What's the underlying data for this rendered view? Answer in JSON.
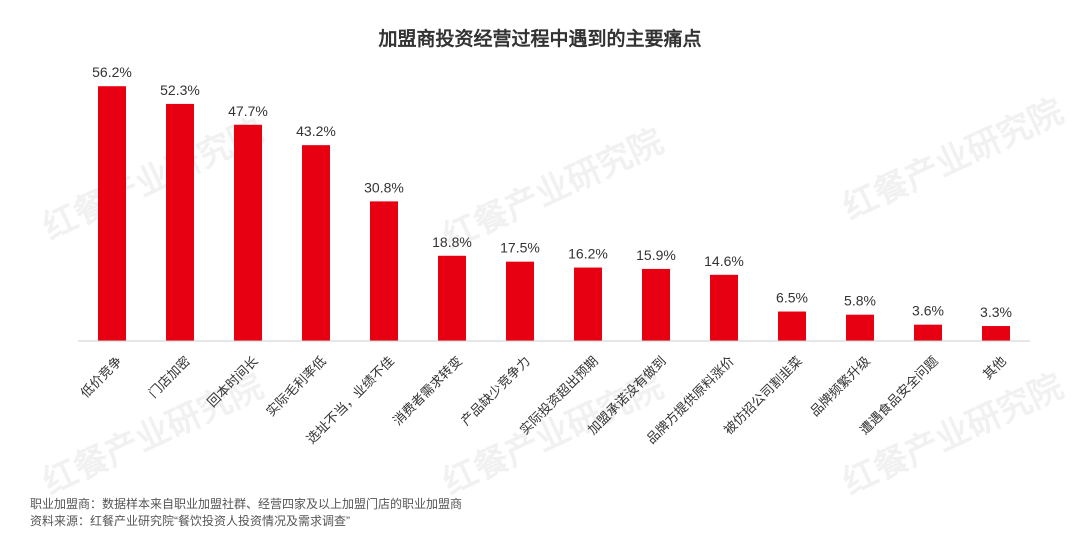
{
  "chart_data": {
    "type": "bar",
    "title": "加盟商投资经营过程中遇到的主要痛点",
    "categories": [
      "低价竞争",
      "门店加密",
      "回本时间长",
      "实际毛利率低",
      "选址不当，业绩不佳",
      "消费者需求转变",
      "产品缺少竞争力",
      "实际投资超出预期",
      "加盟承诺没有做到",
      "品牌方提供原料涨价",
      "被仿招公司割韭菜",
      "品牌频繁升级",
      "遭遇食品安全问题",
      "其他"
    ],
    "values": [
      56.2,
      52.3,
      47.7,
      43.2,
      30.8,
      18.8,
      17.5,
      16.2,
      15.9,
      14.6,
      6.5,
      5.8,
      3.6,
      3.3
    ],
    "value_labels": [
      "56.2%",
      "52.3%",
      "47.7%",
      "43.2%",
      "30.8%",
      "18.8%",
      "17.5%",
      "16.2%",
      "15.9%",
      "14.6%",
      "6.5%",
      "5.8%",
      "3.6%",
      "3.3%"
    ],
    "ylim": [
      0,
      60
    ],
    "grid": false,
    "bar_color": "#e60012"
  },
  "footnotes": [
    "职业加盟商：数据样本来自职业加盟社群、经营四家及以上加盟门店的职业加盟商",
    "资料来源：红餐产业研究院“餐饮投资人投资情况及需求调查”"
  ],
  "watermark_text": "红餐产业研究院"
}
